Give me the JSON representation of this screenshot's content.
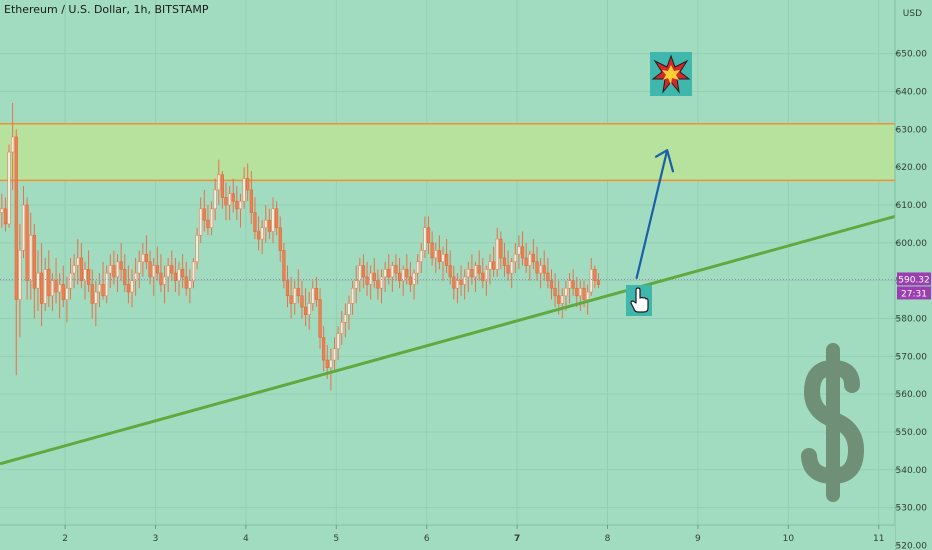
{
  "chart_data": {
    "type": "candlestick",
    "title": "Ethereum / U.S. Dollar, 1h, BITSTAMP",
    "y_unit": "USD",
    "y_ticks": [
      650,
      640,
      630,
      620,
      610,
      600,
      590,
      580,
      570,
      560,
      550,
      540,
      530,
      520
    ],
    "y_tick_labels": [
      "650.00",
      "640.00",
      "630.00",
      "620.00",
      "610.00",
      "600.00",
      "590.00",
      "580.00",
      "570.00",
      "560.00",
      "550.00",
      "540.00",
      "530.00",
      "520.00"
    ],
    "ylim": [
      518.8,
      664.2
    ],
    "xlim": [
      1.28,
      11.18
    ],
    "x_ticks": [
      2,
      3,
      4,
      5,
      6,
      7,
      8,
      9,
      10,
      11
    ],
    "x_tick_labels": [
      "2",
      "3",
      "4",
      "5",
      "6",
      "7",
      "8",
      "9",
      "10",
      "11"
    ],
    "last_price": 590.32,
    "last_price_label": "590.32",
    "countdown_label": "27:31",
    "resistance_zone": {
      "low": 616.5,
      "high": 631.5
    },
    "trendlines": [
      {
        "name": "",
        "x1": 1.28,
        "y1": 541.6,
        "x2": 11.18,
        "y2": 607.0
      },
      {
        "name": "",
        "x1": 1.28,
        "y1": 519.6,
        "x2": 11.18,
        "y2": 523.2
      }
    ],
    "projection_arrow": {
      "x1": 8.32,
      "y1": 590.5,
      "x2": 8.66,
      "y2": 624.5
    },
    "candles": [
      [
        1.3,
        608,
        613,
        604,
        609
      ],
      [
        1.34,
        609,
        612,
        603,
        605
      ],
      [
        1.38,
        605,
        626,
        604,
        624
      ],
      [
        1.42,
        624,
        637,
        614,
        628
      ],
      [
        1.46,
        628,
        630,
        565,
        585
      ],
      [
        1.5,
        585,
        605,
        575,
        598
      ],
      [
        1.54,
        598,
        615,
        596,
        610
      ],
      [
        1.58,
        610,
        612,
        585,
        590
      ],
      [
        1.62,
        590,
        608,
        585,
        602
      ],
      [
        1.66,
        602,
        605,
        580,
        588
      ],
      [
        1.7,
        588,
        598,
        582,
        592
      ],
      [
        1.74,
        592,
        600,
        578,
        584
      ],
      [
        1.78,
        584,
        596,
        582,
        593
      ],
      [
        1.82,
        593,
        598,
        583,
        586
      ],
      [
        1.86,
        586,
        592,
        582,
        590
      ],
      [
        1.9,
        590,
        596,
        584,
        587
      ],
      [
        1.94,
        587,
        592,
        580,
        589
      ],
      [
        1.98,
        589,
        594,
        583,
        585
      ],
      [
        2.02,
        585,
        591,
        579,
        588
      ],
      [
        2.06,
        588,
        596,
        585,
        592
      ],
      [
        2.1,
        592,
        597,
        588,
        594
      ],
      [
        2.14,
        594,
        601,
        589,
        596
      ],
      [
        2.18,
        596,
        600,
        588,
        590
      ],
      [
        2.22,
        590,
        595,
        585,
        593
      ],
      [
        2.26,
        593,
        598,
        587,
        589
      ],
      [
        2.3,
        589,
        593,
        580,
        584
      ],
      [
        2.34,
        584,
        590,
        578,
        587
      ],
      [
        2.38,
        587,
        592,
        583,
        589
      ],
      [
        2.42,
        589,
        595,
        585,
        586
      ],
      [
        2.46,
        586,
        594,
        584,
        592
      ],
      [
        2.5,
        592,
        597,
        588,
        594
      ],
      [
        2.54,
        594,
        598,
        589,
        591
      ],
      [
        2.58,
        591,
        597,
        587,
        595
      ],
      [
        2.62,
        595,
        600,
        590,
        593
      ],
      [
        2.66,
        593,
        597,
        587,
        589
      ],
      [
        2.7,
        589,
        594,
        584,
        587
      ],
      [
        2.74,
        587,
        593,
        583,
        590
      ],
      [
        2.78,
        590,
        596,
        586,
        592
      ],
      [
        2.82,
        592,
        598,
        588,
        595
      ],
      [
        2.86,
        595,
        600,
        591,
        597
      ],
      [
        2.9,
        597,
        602,
        593,
        595
      ],
      [
        2.94,
        595,
        598,
        589,
        591
      ],
      [
        2.98,
        591,
        596,
        586,
        594
      ],
      [
        3.02,
        594,
        599,
        590,
        592
      ],
      [
        3.06,
        592,
        597,
        587,
        589
      ],
      [
        3.1,
        589,
        594,
        584,
        591
      ],
      [
        3.14,
        591,
        596,
        587,
        594
      ],
      [
        3.18,
        594,
        598,
        590,
        592
      ],
      [
        3.22,
        592,
        596,
        587,
        590
      ],
      [
        3.26,
        590,
        595,
        586,
        593
      ],
      [
        3.3,
        593,
        597,
        588,
        591
      ],
      [
        3.34,
        591,
        595,
        586,
        588
      ],
      [
        3.38,
        588,
        593,
        584,
        590
      ],
      [
        3.42,
        590,
        596,
        588,
        595
      ],
      [
        3.46,
        595,
        604,
        593,
        602
      ],
      [
        3.5,
        602,
        612,
        600,
        609
      ],
      [
        3.54,
        609,
        614,
        603,
        606
      ],
      [
        3.58,
        606,
        610,
        602,
        604
      ],
      [
        3.62,
        604,
        611,
        602,
        609
      ],
      [
        3.66,
        609,
        617,
        606,
        614
      ],
      [
        3.7,
        614,
        622,
        610,
        618
      ],
      [
        3.74,
        618,
        619,
        609,
        612
      ],
      [
        3.78,
        612,
        616,
        606,
        610
      ],
      [
        3.82,
        610,
        615,
        606,
        613
      ],
      [
        3.86,
        613,
        617,
        608,
        611
      ],
      [
        3.9,
        611,
        615,
        606,
        609
      ],
      [
        3.94,
        609,
        613,
        604,
        611
      ],
      [
        3.98,
        611,
        620,
        609,
        617
      ],
      [
        4.02,
        617,
        621,
        611,
        614
      ],
      [
        4.06,
        614,
        619,
        605,
        608
      ],
      [
        4.1,
        608,
        612,
        601,
        603
      ],
      [
        4.14,
        603,
        607,
        598,
        601
      ],
      [
        4.18,
        601,
        606,
        597,
        604
      ],
      [
        4.22,
        604,
        610,
        600,
        606
      ],
      [
        4.26,
        606,
        609,
        601,
        603
      ],
      [
        4.3,
        603,
        612,
        600,
        609
      ],
      [
        4.34,
        609,
        611,
        602,
        604
      ],
      [
        4.38,
        604,
        607,
        595,
        598
      ],
      [
        4.42,
        598,
        600,
        588,
        590
      ],
      [
        4.46,
        590,
        594,
        583,
        586
      ],
      [
        4.5,
        586,
        591,
        580,
        584
      ],
      [
        4.54,
        584,
        590,
        581,
        588
      ],
      [
        4.58,
        588,
        593,
        584,
        586
      ],
      [
        4.62,
        586,
        590,
        580,
        583
      ],
      [
        4.66,
        583,
        588,
        578,
        581
      ],
      [
        4.7,
        581,
        587,
        577,
        584
      ],
      [
        4.74,
        584,
        590,
        582,
        588
      ],
      [
        4.78,
        588,
        591,
        583,
        585
      ],
      [
        4.82,
        585,
        588,
        572,
        575
      ],
      [
        4.86,
        575,
        578,
        566,
        569
      ],
      [
        4.9,
        569,
        573,
        564,
        567
      ],
      [
        4.94,
        567,
        572,
        561,
        569
      ],
      [
        4.98,
        569,
        575,
        566,
        572
      ],
      [
        5.02,
        572,
        578,
        569,
        576
      ],
      [
        5.06,
        576,
        582,
        573,
        579
      ],
      [
        5.1,
        579,
        584,
        575,
        581
      ],
      [
        5.14,
        581,
        586,
        577,
        584
      ],
      [
        5.18,
        584,
        590,
        581,
        588
      ],
      [
        5.22,
        588,
        594,
        584,
        590
      ],
      [
        5.26,
        590,
        596,
        587,
        594
      ],
      [
        5.3,
        594,
        597,
        588,
        591
      ],
      [
        5.34,
        591,
        595,
        586,
        589
      ],
      [
        5.38,
        589,
        594,
        585,
        592
      ],
      [
        5.42,
        592,
        596,
        588,
        590
      ],
      [
        5.46,
        590,
        593,
        585,
        588
      ],
      [
        5.5,
        588,
        593,
        584,
        591
      ],
      [
        5.54,
        591,
        595,
        587,
        593
      ],
      [
        5.58,
        593,
        597,
        589,
        591
      ],
      [
        5.62,
        591,
        595,
        587,
        594
      ],
      [
        5.66,
        594,
        597,
        590,
        592
      ],
      [
        5.7,
        592,
        596,
        588,
        590
      ],
      [
        5.74,
        590,
        594,
        586,
        593
      ],
      [
        5.78,
        593,
        597,
        589,
        591
      ],
      [
        5.82,
        591,
        595,
        587,
        589
      ],
      [
        5.86,
        589,
        593,
        585,
        592
      ],
      [
        5.9,
        592,
        597,
        589,
        595
      ],
      [
        5.94,
        595,
        600,
        592,
        598
      ],
      [
        5.98,
        598,
        607,
        596,
        604
      ],
      [
        6.02,
        604,
        607,
        597,
        600
      ],
      [
        6.06,
        600,
        603,
        594,
        596
      ],
      [
        6.1,
        596,
        600,
        592,
        598
      ],
      [
        6.14,
        598,
        602,
        593,
        595
      ],
      [
        6.18,
        595,
        599,
        590,
        597
      ],
      [
        6.22,
        597,
        601,
        592,
        594
      ],
      [
        6.26,
        594,
        598,
        589,
        591
      ],
      [
        6.3,
        591,
        594,
        585,
        588
      ],
      [
        6.34,
        588,
        592,
        584,
        590
      ],
      [
        6.38,
        590,
        594,
        586,
        589
      ],
      [
        6.42,
        589,
        593,
        585,
        591
      ],
      [
        6.46,
        591,
        595,
        587,
        593
      ],
      [
        6.5,
        593,
        597,
        589,
        591
      ],
      [
        6.54,
        591,
        595,
        587,
        594
      ],
      [
        6.58,
        594,
        598,
        590,
        592
      ],
      [
        6.62,
        592,
        596,
        588,
        590
      ],
      [
        6.66,
        590,
        594,
        586,
        593
      ],
      [
        6.7,
        593,
        597,
        589,
        595
      ],
      [
        6.74,
        595,
        599,
        591,
        593
      ],
      [
        6.78,
        593,
        604,
        591,
        601
      ],
      [
        6.82,
        601,
        603,
        593,
        596
      ],
      [
        6.86,
        596,
        600,
        591,
        594
      ],
      [
        6.9,
        594,
        598,
        590,
        592
      ],
      [
        6.94,
        592,
        596,
        588,
        595
      ],
      [
        6.98,
        595,
        600,
        592,
        597
      ],
      [
        7.02,
        597,
        602,
        593,
        599
      ],
      [
        7.06,
        599,
        603,
        594,
        596
      ],
      [
        7.1,
        596,
        600,
        592,
        594
      ],
      [
        7.14,
        594,
        598,
        590,
        597
      ],
      [
        7.18,
        597,
        601,
        593,
        595
      ],
      [
        7.22,
        595,
        599,
        590,
        592
      ],
      [
        7.26,
        592,
        596,
        588,
        594
      ],
      [
        7.3,
        594,
        598,
        590,
        592
      ],
      [
        7.34,
        592,
        596,
        588,
        590
      ],
      [
        7.38,
        590,
        593,
        585,
        588
      ],
      [
        7.42,
        588,
        592,
        583,
        586
      ],
      [
        7.46,
        586,
        590,
        581,
        584
      ],
      [
        7.5,
        584,
        588,
        580,
        586
      ],
      [
        7.54,
        586,
        590,
        582,
        588
      ],
      [
        7.58,
        588,
        592,
        584,
        590
      ],
      [
        7.62,
        590,
        593,
        586,
        588
      ],
      [
        7.66,
        588,
        591,
        583,
        586
      ],
      [
        7.7,
        586,
        590,
        582,
        588
      ],
      [
        7.74,
        588,
        590,
        583,
        585
      ],
      [
        7.78,
        585,
        589,
        581,
        587
      ],
      [
        7.82,
        587,
        596,
        586,
        593
      ],
      [
        7.86,
        593,
        594,
        588,
        590
      ],
      [
        7.9,
        590,
        592,
        588,
        589
      ]
    ]
  }
}
